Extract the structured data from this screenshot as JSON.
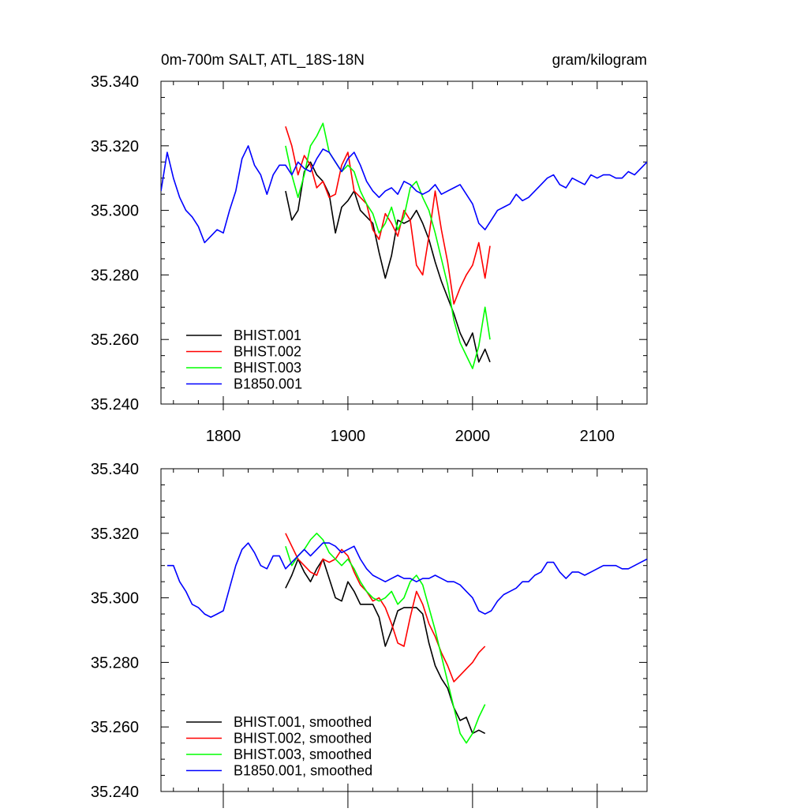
{
  "chart_data": [
    {
      "type": "line",
      "title": "0m-700m SALT, ATL_18S-18N",
      "units": "gram/kilogram",
      "xlim": [
        1750,
        2140
      ],
      "ylim": [
        35.24,
        35.34
      ],
      "xticks": [
        "1800",
        "1900",
        "2000",
        "2100"
      ],
      "yticks": [
        "35.240",
        "35.260",
        "35.280",
        "35.300",
        "35.320",
        "35.340"
      ],
      "legend_position": "bottom-left",
      "series": [
        {
          "name": "BHIST.001",
          "color": "#000000",
          "x": [
            1850,
            1855,
            1860,
            1865,
            1870,
            1875,
            1880,
            1885,
            1890,
            1895,
            1900,
            1905,
            1910,
            1915,
            1920,
            1925,
            1930,
            1935,
            1940,
            1945,
            1950,
            1955,
            1960,
            1965,
            1970,
            1975,
            1980,
            1985,
            1990,
            1995,
            2000,
            2005,
            2010,
            2014
          ],
          "y": [
            35.306,
            35.297,
            35.3,
            35.312,
            35.315,
            35.311,
            35.309,
            35.305,
            35.293,
            35.301,
            35.303,
            35.306,
            35.3,
            35.298,
            35.296,
            35.287,
            35.279,
            35.286,
            35.297,
            35.296,
            35.297,
            35.3,
            35.296,
            35.291,
            35.284,
            35.278,
            35.273,
            35.268,
            35.262,
            35.258,
            35.262,
            35.253,
            35.257,
            35.253
          ]
        },
        {
          "name": "BHIST.002",
          "color": "#ff0000",
          "x": [
            1850,
            1855,
            1860,
            1865,
            1870,
            1875,
            1880,
            1885,
            1890,
            1895,
            1900,
            1905,
            1910,
            1915,
            1920,
            1925,
            1930,
            1935,
            1940,
            1945,
            1950,
            1955,
            1960,
            1965,
            1970,
            1975,
            1980,
            1985,
            1990,
            1995,
            2000,
            2005,
            2010,
            2014
          ],
          "y": [
            35.326,
            35.32,
            35.311,
            35.317,
            35.314,
            35.307,
            35.309,
            35.304,
            35.305,
            35.314,
            35.318,
            35.306,
            35.304,
            35.302,
            35.294,
            35.291,
            35.299,
            35.296,
            35.292,
            35.3,
            35.297,
            35.283,
            35.28,
            35.292,
            35.306,
            35.294,
            35.284,
            35.271,
            35.276,
            35.28,
            35.283,
            35.29,
            35.279,
            35.289
          ]
        },
        {
          "name": "BHIST.003",
          "color": "#00ff00",
          "x": [
            1850,
            1855,
            1860,
            1865,
            1870,
            1875,
            1880,
            1885,
            1890,
            1895,
            1900,
            1905,
            1910,
            1915,
            1920,
            1925,
            1930,
            1935,
            1940,
            1945,
            1950,
            1955,
            1960,
            1965,
            1970,
            1975,
            1980,
            1985,
            1990,
            1995,
            2000,
            2005,
            2010,
            2014
          ],
          "y": [
            35.32,
            35.311,
            35.304,
            35.311,
            35.32,
            35.323,
            35.327,
            35.318,
            35.315,
            35.312,
            35.314,
            35.312,
            35.306,
            35.302,
            35.299,
            35.293,
            35.296,
            35.301,
            35.294,
            35.298,
            35.307,
            35.309,
            35.304,
            35.3,
            35.293,
            35.285,
            35.277,
            35.266,
            35.259,
            35.255,
            35.251,
            35.258,
            35.27,
            35.26
          ]
        },
        {
          "name": "B1850.001",
          "color": "#0000ff",
          "x": [
            1750,
            1755,
            1760,
            1765,
            1770,
            1775,
            1780,
            1785,
            1790,
            1795,
            1800,
            1805,
            1810,
            1815,
            1820,
            1825,
            1830,
            1835,
            1840,
            1845,
            1850,
            1855,
            1860,
            1865,
            1870,
            1875,
            1880,
            1885,
            1890,
            1895,
            1900,
            1905,
            1910,
            1915,
            1920,
            1925,
            1930,
            1935,
            1940,
            1945,
            1950,
            1955,
            1960,
            1965,
            1970,
            1975,
            1980,
            1985,
            1990,
            1995,
            2000,
            2005,
            2010,
            2015,
            2020,
            2025,
            2030,
            2035,
            2040,
            2045,
            2050,
            2055,
            2060,
            2065,
            2070,
            2075,
            2080,
            2085,
            2090,
            2095,
            2100,
            2105,
            2110,
            2115,
            2120,
            2125,
            2130,
            2135,
            2140
          ],
          "y": [
            35.306,
            35.318,
            35.31,
            35.304,
            35.3,
            35.298,
            35.295,
            35.29,
            35.292,
            35.294,
            35.293,
            35.3,
            35.306,
            35.316,
            35.32,
            35.314,
            35.311,
            35.305,
            35.311,
            35.314,
            35.314,
            35.311,
            35.315,
            35.313,
            35.312,
            35.316,
            35.319,
            35.318,
            35.315,
            35.312,
            35.316,
            35.318,
            35.314,
            35.309,
            35.306,
            35.304,
            35.306,
            35.307,
            35.305,
            35.309,
            35.308,
            35.306,
            35.305,
            35.306,
            35.308,
            35.305,
            35.306,
            35.307,
            35.308,
            35.305,
            35.302,
            35.296,
            35.294,
            35.297,
            35.3,
            35.301,
            35.302,
            35.305,
            35.303,
            35.304,
            35.306,
            35.308,
            35.31,
            35.311,
            35.308,
            35.307,
            35.31,
            35.309,
            35.308,
            35.311,
            35.31,
            35.311,
            35.311,
            35.31,
            35.31,
            35.312,
            35.311,
            35.313,
            35.315
          ]
        }
      ]
    },
    {
      "type": "line",
      "title": "",
      "xlim": [
        1750,
        2140
      ],
      "ylim": [
        35.24,
        35.34
      ],
      "yticks": [
        "35.240",
        "35.260",
        "35.280",
        "35.300",
        "35.320",
        "35.340"
      ],
      "legend_position": "bottom-left",
      "series": [
        {
          "name": "BHIST.001, smoothed",
          "color": "#000000",
          "x": [
            1850,
            1855,
            1860,
            1865,
            1870,
            1875,
            1880,
            1885,
            1890,
            1895,
            1900,
            1905,
            1910,
            1915,
            1920,
            1925,
            1930,
            1935,
            1940,
            1945,
            1950,
            1955,
            1960,
            1965,
            1970,
            1975,
            1980,
            1985,
            1990,
            1995,
            2000,
            2005,
            2010
          ],
          "y": [
            35.303,
            35.307,
            35.312,
            35.308,
            35.305,
            35.309,
            35.312,
            35.306,
            35.3,
            35.299,
            35.305,
            35.302,
            35.298,
            35.298,
            35.298,
            35.294,
            35.285,
            35.29,
            35.296,
            35.297,
            35.297,
            35.297,
            35.295,
            35.286,
            35.279,
            35.275,
            35.272,
            35.266,
            35.262,
            35.263,
            35.258,
            35.259,
            35.258
          ]
        },
        {
          "name": "BHIST.002, smoothed",
          "color": "#ff0000",
          "x": [
            1850,
            1855,
            1860,
            1865,
            1870,
            1875,
            1880,
            1885,
            1890,
            1895,
            1900,
            1905,
            1910,
            1915,
            1920,
            1925,
            1930,
            1935,
            1940,
            1945,
            1950,
            1955,
            1960,
            1965,
            1970,
            1975,
            1980,
            1985,
            1990,
            1995,
            2000,
            2005,
            2010
          ],
          "y": [
            35.32,
            35.316,
            35.312,
            35.31,
            35.308,
            35.307,
            35.312,
            35.311,
            35.312,
            35.315,
            35.313,
            35.308,
            35.304,
            35.302,
            35.299,
            35.3,
            35.297,
            35.292,
            35.286,
            35.285,
            35.294,
            35.302,
            35.298,
            35.292,
            35.288,
            35.283,
            35.279,
            35.274,
            35.276,
            35.278,
            35.28,
            35.283,
            35.285
          ]
        },
        {
          "name": "BHIST.003, smoothed",
          "color": "#00ff00",
          "x": [
            1850,
            1855,
            1860,
            1865,
            1870,
            1875,
            1880,
            1885,
            1890,
            1895,
            1900,
            1905,
            1910,
            1915,
            1920,
            1925,
            1930,
            1935,
            1940,
            1945,
            1950,
            1955,
            1960,
            1965,
            1970,
            1975,
            1980,
            1985,
            1990,
            1995,
            2000,
            2005,
            2010
          ],
          "y": [
            35.316,
            35.31,
            35.313,
            35.315,
            35.318,
            35.32,
            35.318,
            35.314,
            35.312,
            35.31,
            35.312,
            35.309,
            35.305,
            35.302,
            35.3,
            35.299,
            35.3,
            35.302,
            35.298,
            35.3,
            35.305,
            35.307,
            35.304,
            35.297,
            35.29,
            35.282,
            35.274,
            35.266,
            35.258,
            35.255,
            35.258,
            35.263,
            35.267
          ]
        },
        {
          "name": "B1850.001, smoothed",
          "color": "#0000ff",
          "x": [
            1755,
            1760,
            1765,
            1770,
            1775,
            1780,
            1785,
            1790,
            1795,
            1800,
            1805,
            1810,
            1815,
            1820,
            1825,
            1830,
            1835,
            1840,
            1845,
            1850,
            1855,
            1860,
            1865,
            1870,
            1875,
            1880,
            1885,
            1890,
            1895,
            1900,
            1905,
            1910,
            1915,
            1920,
            1925,
            1930,
            1935,
            1940,
            1945,
            1950,
            1955,
            1960,
            1965,
            1970,
            1975,
            1980,
            1985,
            1990,
            1995,
            2000,
            2005,
            2010,
            2015,
            2020,
            2025,
            2030,
            2035,
            2040,
            2045,
            2050,
            2055,
            2060,
            2065,
            2070,
            2075,
            2080,
            2085,
            2090,
            2095,
            2100,
            2105,
            2110,
            2115,
            2120,
            2125,
            2130,
            2135,
            2140
          ],
          "y": [
            35.31,
            35.31,
            35.305,
            35.302,
            35.298,
            35.297,
            35.295,
            35.294,
            35.295,
            35.296,
            35.303,
            35.31,
            35.315,
            35.317,
            35.314,
            35.31,
            35.309,
            35.313,
            35.313,
            35.309,
            35.311,
            35.313,
            35.315,
            35.313,
            35.315,
            35.317,
            35.317,
            35.316,
            35.314,
            35.315,
            35.316,
            35.312,
            35.309,
            35.307,
            35.306,
            35.305,
            35.306,
            35.307,
            35.306,
            35.306,
            35.305,
            35.306,
            35.306,
            35.307,
            35.306,
            35.305,
            35.305,
            35.304,
            35.302,
            35.3,
            35.296,
            35.295,
            35.296,
            35.299,
            35.301,
            35.302,
            35.303,
            35.305,
            35.305,
            35.307,
            35.308,
            35.311,
            35.311,
            35.308,
            35.306,
            35.308,
            35.308,
            35.307,
            35.308,
            35.309,
            35.31,
            35.31,
            35.31,
            35.309,
            35.309,
            35.31,
            35.311,
            35.312
          ]
        }
      ]
    }
  ]
}
